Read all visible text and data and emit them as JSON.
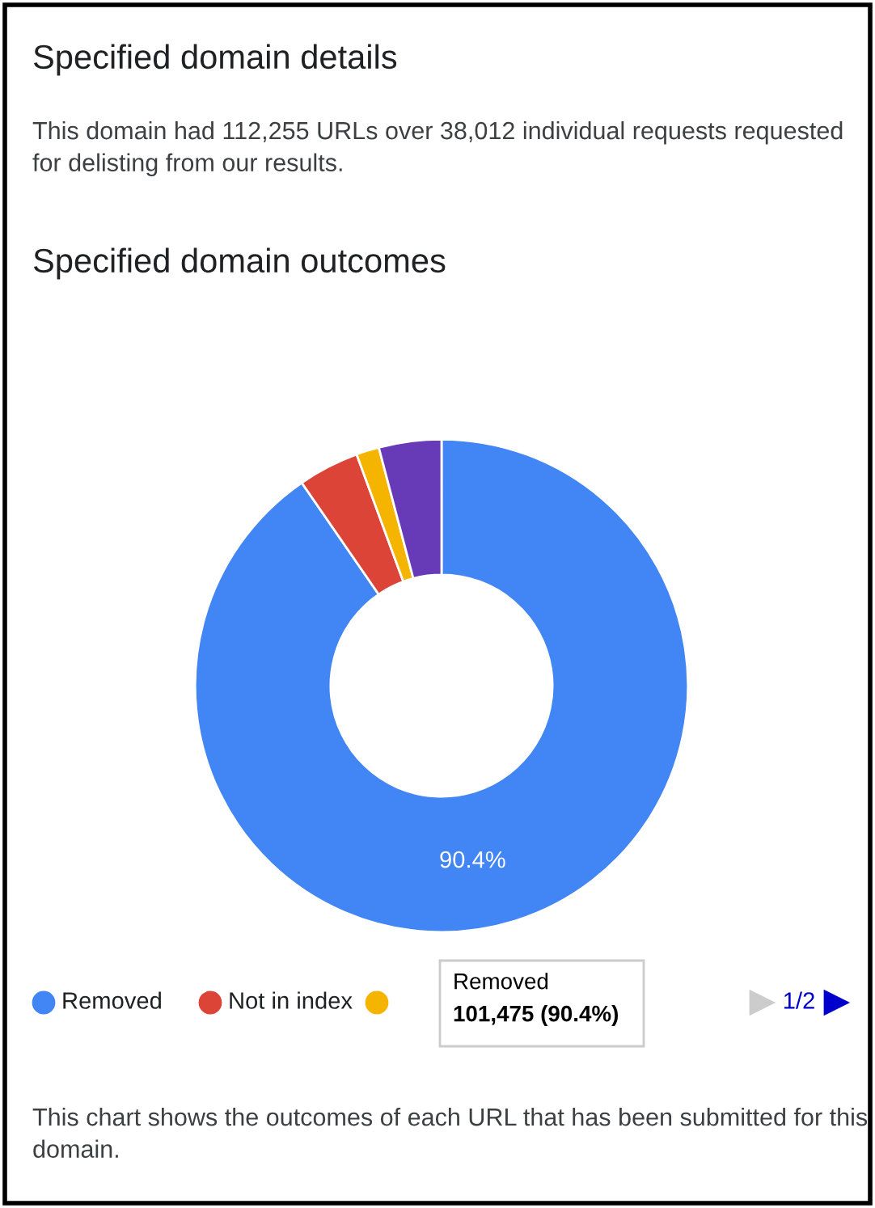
{
  "chart_data": {
    "type": "donut",
    "title": "Specified domain outcomes",
    "categories": [
      "Removed",
      "Not in index",
      null,
      null
    ],
    "values": [
      90.4,
      4.0,
      1.5,
      4.1
    ],
    "colors": [
      "#4285f4",
      "#db4437",
      "#f4b400",
      "#673ab7"
    ],
    "value_labels": [
      "90.4%",
      null,
      null,
      null
    ],
    "legend": "bottom",
    "annotations": [
      "Specified domain details",
      "This domain had 112,255 URLs over 38,012 individual requests requested for delisting from our results.",
      "Removed\n101,475 (90.4%)",
      "1/2",
      "This chart shows the outcomes of each URL that has been submitted for this domain."
    ]
  }
}
